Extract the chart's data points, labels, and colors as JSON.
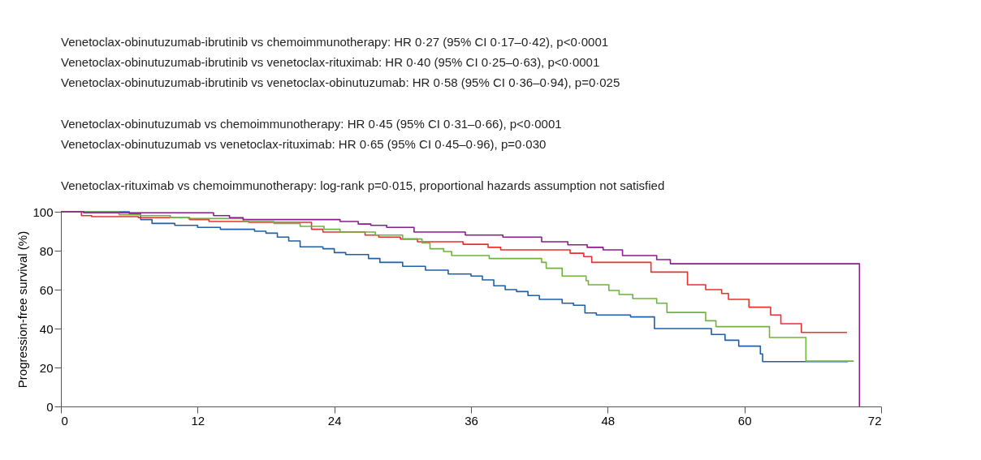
{
  "chart_data": {
    "type": "step",
    "ylabel": "Progression-free survival (%)",
    "annotations": [
      "Venetoclax-obinutuzumab-ibrutinib vs chemoimmunotherapy: HR 0·27 (95% CI 0·17–0·42), p<0·0001",
      "Venetoclax-obinutuzumab-ibrutinib vs venetoclax-rituximab: HR 0·40 (95% CI 0·25–0·63), p<0·0001",
      "Venetoclax-obinutuzumab-ibrutinib vs venetoclax-obinutuzumab: HR 0·58 (95% CI 0·36–0·94), p=0·025",
      "Venetoclax-obinutuzumab vs chemoimmunotherapy: HR 0·45 (95% CI 0·31–0·66), p<0·0001",
      "Venetoclax-obinutuzumab vs venetoclax-rituximab: HR 0·65 (95% CI 0·45–0·96), p=0·030",
      "Venetoclax-rituximab vs chemoimmunotherapy: log-rank p=0·015, proportional hazards assumption not satisfied"
    ],
    "xlim": [
      0,
      72
    ],
    "xticks": [
      0,
      12,
      24,
      36,
      48,
      60,
      72
    ],
    "ylim": [
      0,
      100
    ],
    "yticks": [
      0,
      20,
      40,
      60,
      80,
      100
    ],
    "grid": false,
    "series": [
      {
        "color": "#1f5fa8",
        "x": [
          0,
          6,
          7,
          8,
          10,
          12,
          14,
          17,
          18,
          19,
          20,
          21,
          23,
          24,
          25,
          27,
          28,
          30,
          32,
          34,
          36,
          37,
          38,
          39,
          40,
          41,
          42,
          44,
          45,
          46,
          47,
          50,
          52.1,
          57.1,
          58.3,
          59.5,
          61.4,
          61.6,
          69.1
        ],
        "values": [
          100,
          99,
          96,
          94,
          93,
          92,
          91,
          90,
          89,
          87,
          85,
          82,
          81,
          79,
          78,
          76,
          74,
          72,
          70,
          68,
          67,
          65,
          62,
          60,
          59,
          57,
          55,
          53,
          52,
          48,
          47,
          46,
          40,
          37,
          34,
          31,
          27,
          23,
          23
        ]
      },
      {
        "color": "#e8312f",
        "x": [
          0,
          1.8,
          2.7,
          6.8,
          11.3,
          13,
          16.5,
          22,
          23,
          26.7,
          27.9,
          29.8,
          31.3,
          35.3,
          37.5,
          38.6,
          44.7,
          45.9,
          46.6,
          51.8,
          55,
          56.6,
          58,
          58.6,
          60.4,
          62.3,
          63.2,
          65,
          69
        ],
        "values": [
          100,
          98,
          97.5,
          97,
          96,
          95,
          94.6,
          91,
          89.6,
          88,
          87,
          86,
          84.6,
          83.3,
          81.7,
          80.4,
          78.7,
          77,
          74,
          69,
          62.5,
          60,
          58,
          55,
          51,
          47,
          42.5,
          38,
          38
        ]
      },
      {
        "color": "#6db33f",
        "x": [
          0,
          5.1,
          7,
          9.6,
          11.2,
          16,
          18.7,
          21,
          23.1,
          24.5,
          27.6,
          30,
          31.7,
          32.4,
          33.6,
          34.3,
          37.6,
          42.2,
          42.6,
          44,
          46.1,
          46.3,
          48.1,
          49,
          50.2,
          52.3,
          53.2,
          56.6,
          57.5,
          62.2,
          65.4,
          69.6
        ],
        "values": [
          100,
          98.5,
          98,
          97,
          96.5,
          95,
          94,
          92.5,
          91,
          89.6,
          88,
          86,
          84,
          81,
          79.6,
          77.5,
          76,
          74,
          71,
          67,
          64.6,
          62.5,
          59.6,
          57.5,
          55.4,
          53,
          48.3,
          44,
          41,
          35.4,
          23.3,
          23.3
        ]
      },
      {
        "color": "#8b1c8c",
        "x": [
          0,
          2,
          13.4,
          14.8,
          16,
          24.5,
          26.1,
          27.2,
          28.6,
          31,
          35.5,
          38.8,
          42.2,
          44.5,
          46.2,
          47.6,
          49.3,
          52.3,
          53.5,
          70.1,
          70.1
        ],
        "values": [
          100,
          99.5,
          98,
          97,
          96,
          95,
          93.7,
          93,
          92,
          89.6,
          88,
          87,
          84.6,
          83,
          81.7,
          80.4,
          77.5,
          75.4,
          73.3,
          73.3,
          0
        ]
      }
    ]
  }
}
